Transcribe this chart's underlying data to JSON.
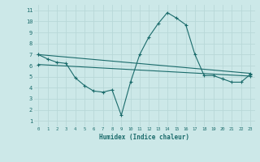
{
  "xlabel": "Humidex (Indice chaleur)",
  "ylabel": "",
  "background_color": "#cce8e8",
  "grid_color": "#b8d8d8",
  "line_color": "#1a6b6b",
  "xlim": [
    -0.5,
    23.5
  ],
  "ylim": [
    0.5,
    11.5
  ],
  "xticks": [
    0,
    1,
    2,
    3,
    4,
    5,
    6,
    7,
    8,
    9,
    10,
    11,
    12,
    13,
    14,
    15,
    16,
    17,
    18,
    19,
    20,
    21,
    22,
    23
  ],
  "yticks": [
    1,
    2,
    3,
    4,
    5,
    6,
    7,
    8,
    9,
    10,
    11
  ],
  "line1_x": [
    0,
    1,
    2,
    3,
    4,
    5,
    6,
    7,
    8,
    9,
    10,
    11,
    12,
    13,
    14,
    15,
    16,
    17,
    18,
    19,
    20,
    21,
    22,
    23
  ],
  "line1_y": [
    7.0,
    6.6,
    6.3,
    6.2,
    4.9,
    4.2,
    3.7,
    3.6,
    3.8,
    1.5,
    4.5,
    7.0,
    8.6,
    9.8,
    10.8,
    10.3,
    9.7,
    7.0,
    5.1,
    5.1,
    4.8,
    4.5,
    4.5,
    5.2
  ],
  "line2_x": [
    0,
    23
  ],
  "line2_y": [
    7.0,
    5.3
  ],
  "line3_x": [
    0,
    23
  ],
  "line3_y": [
    6.1,
    5.05
  ]
}
